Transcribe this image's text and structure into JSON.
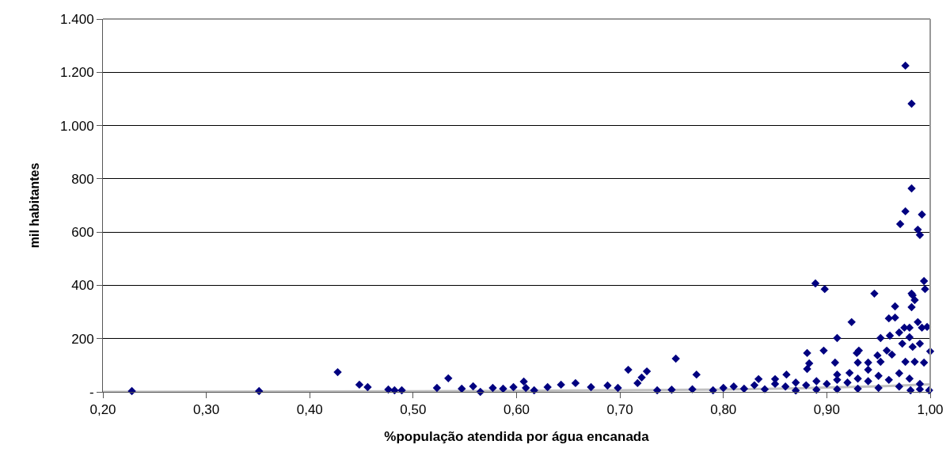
{
  "chart_data": {
    "type": "scatter",
    "xlabel": "%população atendida por água encanada",
    "ylabel": "mil habitantes",
    "xlim": [
      0.2,
      1.0
    ],
    "xticks": [
      {
        "value": 0.2,
        "label": "0,20"
      },
      {
        "value": 0.3,
        "label": "0,30"
      },
      {
        "value": 0.4,
        "label": "0,40"
      },
      {
        "value": 0.5,
        "label": "0,50"
      },
      {
        "value": 0.6,
        "label": "0,60"
      },
      {
        "value": 0.7,
        "label": "0,70"
      },
      {
        "value": 0.8,
        "label": "0,80"
      },
      {
        "value": 0.9,
        "label": "0,90"
      },
      {
        "value": 1.0,
        "label": "1,00"
      }
    ],
    "ylim": [
      0,
      1400
    ],
    "yticks": [
      {
        "value": 0,
        "label": "-"
      },
      200,
      400,
      600,
      800,
      {
        "value": 1000,
        "label": "1.000"
      },
      {
        "value": 1200,
        "label": "1.200"
      },
      {
        "value": 1400,
        "label": "1.400"
      }
    ],
    "grid": "y",
    "legend": false,
    "marker": "diamond",
    "series": [
      {
        "color": "#000080",
        "x": [
          0.976,
          0.982,
          0.982,
          0.976,
          0.992,
          0.971,
          0.988,
          0.99,
          0.889,
          0.898,
          0.994,
          0.995,
          0.946,
          0.982,
          0.983,
          0.985,
          0.982,
          0.966,
          0.96,
          0.966,
          0.924,
          0.988,
          0.992,
          0.997,
          0.975,
          0.98,
          0.97,
          0.91,
          0.952,
          0.961,
          0.98,
          0.973,
          0.983,
          0.99,
          1.0,
          0.881,
          0.897,
          0.929,
          0.931,
          0.958,
          0.949,
          0.963,
          0.883,
          0.881,
          0.908,
          0.93,
          0.94,
          0.952,
          0.976,
          0.985,
          0.994,
          0.754,
          0.774,
          0.834,
          0.85,
          0.861,
          0.91,
          0.922,
          0.94,
          0.981,
          0.999,
          0.427,
          0.448,
          0.456,
          0.476,
          0.482,
          0.489,
          0.523,
          0.534,
          0.547,
          0.558,
          0.565,
          0.577,
          0.587,
          0.597,
          0.607,
          0.609,
          0.617,
          0.63,
          0.643,
          0.657,
          0.672,
          0.688,
          0.698,
          0.708,
          0.721,
          0.726,
          0.717,
          0.736,
          0.228,
          0.351,
          0.86,
          0.87,
          0.88,
          0.89,
          0.9,
          0.91,
          0.92,
          0.93,
          0.94,
          0.95,
          0.96,
          0.97,
          0.98,
          0.99,
          0.87,
          0.89,
          0.91,
          0.93,
          0.95,
          0.97,
          0.99,
          0.75,
          0.77,
          0.79,
          0.8,
          0.81,
          0.82,
          0.83,
          0.84,
          0.85
        ],
        "values": [
          1225,
          1082,
          764,
          678,
          666,
          630,
          609,
          589,
          407,
          386,
          416,
          386,
          369,
          369,
          363,
          345,
          318,
          321,
          276,
          279,
          262,
          262,
          241,
          244,
          241,
          241,
          223,
          202,
          202,
          211,
          205,
          181,
          169,
          181,
          152,
          146,
          155,
          146,
          155,
          155,
          137,
          140,
          107,
          86,
          110,
          110,
          110,
          113,
          113,
          113,
          110,
          125,
          65,
          48,
          48,
          65,
          65,
          71,
          83,
          6,
          6,
          74,
          27,
          18,
          9,
          6,
          6,
          15,
          51,
          12,
          21,
          0,
          15,
          12,
          18,
          39,
          15,
          6,
          18,
          27,
          33,
          18,
          24,
          15,
          83,
          54,
          77,
          33,
          6,
          3,
          3,
          20,
          35,
          25,
          40,
          30,
          45,
          35,
          50,
          40,
          60,
          45,
          70,
          50,
          30,
          5,
          8,
          10,
          12,
          15,
          20,
          10,
          8,
          10,
          6,
          15,
          20,
          12,
          25,
          10,
          30
        ]
      },
      {
        "type": "line",
        "marker": "none",
        "color": "#c0c0c0",
        "x": [
          0.2,
          0.5,
          0.6,
          0.7,
          0.8,
          0.85,
          0.9,
          0.95,
          1.0
        ],
        "values": [
          0,
          2,
          4,
          6,
          9,
          12,
          16,
          21,
          28
        ]
      }
    ]
  }
}
